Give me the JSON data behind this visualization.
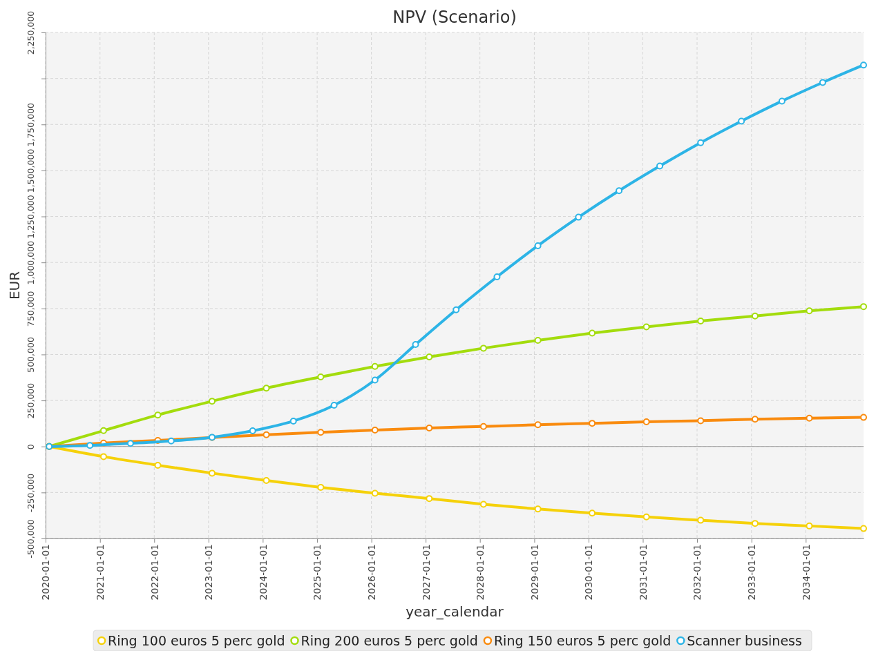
{
  "chart_data": {
    "type": "line",
    "title": "NPV (Scenario)",
    "xlabel": "year_calendar",
    "ylabel": "EUR",
    "xlim": [
      "2020-01-01",
      "2035-01-25"
    ],
    "xticks": [
      {
        "value": "2020-01-01",
        "label": "2020-01-01"
      },
      {
        "value": "2021-01-01",
        "label": "2021-01-01"
      },
      {
        "value": "2022-01-01",
        "label": "2022-01-01"
      },
      {
        "value": "2023-01-01",
        "label": "2023-01-01"
      },
      {
        "value": "2024-01-01",
        "label": "2024-01-01"
      },
      {
        "value": "2025-01-01",
        "label": "2025-01-01"
      },
      {
        "value": "2026-01-01",
        "label": "2026-01-01"
      },
      {
        "value": "2027-01-01",
        "label": "2027-01-01"
      },
      {
        "value": "2028-01-01",
        "label": "2028-01-01"
      },
      {
        "value": "2029-01-01",
        "label": "2029-01-01"
      },
      {
        "value": "2030-01-01",
        "label": "2030-01-01"
      },
      {
        "value": "2031-01-01",
        "label": "2031-01-01"
      },
      {
        "value": "2032-01-01",
        "label": "2032-01-01"
      },
      {
        "value": "2033-01-01",
        "label": "2033-01-01"
      },
      {
        "value": "2034-01-01",
        "label": "2034-01-01"
      }
    ],
    "ylim": [
      -500000,
      2250000
    ],
    "yticks": [
      {
        "value": -500000,
        "label": "-500,000"
      },
      {
        "value": -250000,
        "label": "-250,000"
      },
      {
        "value": 0,
        "label": "0"
      },
      {
        "value": 250000,
        "label": "250,000"
      },
      {
        "value": 500000,
        "label": "500,000"
      },
      {
        "value": 750000,
        "label": "750,000"
      },
      {
        "value": 1000000,
        "label": "1,000,000"
      },
      {
        "value": 1250000,
        "label": "1,250,000"
      },
      {
        "value": 1500000,
        "label": "1,500,000"
      },
      {
        "value": 1750000,
        "label": "1,750,000"
      },
      {
        "value": 2000000,
        "label": null
      },
      {
        "value": 2250000,
        "label": "2,250,000"
      }
    ],
    "grid": true,
    "legend": "bottom",
    "marker": "circle",
    "line_style": "solid",
    "series": [
      {
        "name": "Ring 100 euros 5 perc gold",
        "color": "#f5d10a",
        "x": [
          "2020-01-25",
          "2021-01-25",
          "2022-01-25",
          "2023-01-25",
          "2024-01-25",
          "2025-01-25",
          "2026-01-25",
          "2027-01-25",
          "2028-01-25",
          "2029-01-25",
          "2030-01-25",
          "2031-01-25",
          "2032-01-25",
          "2033-01-25",
          "2034-01-25",
          "2035-01-25"
        ],
        "values": [
          0,
          -55000,
          -102000,
          -145000,
          -185000,
          -222000,
          -254000,
          -283000,
          -314000,
          -340000,
          -362000,
          -383000,
          -401000,
          -418000,
          -432000,
          -446000
        ]
      },
      {
        "name": "Ring 200 euros 5 perc gold",
        "color": "#a3dc0d",
        "x": [
          "2020-01-25",
          "2021-01-25",
          "2022-01-25",
          "2023-01-25",
          "2024-01-25",
          "2025-01-25",
          "2026-01-25",
          "2027-01-25",
          "2028-01-25",
          "2029-01-25",
          "2030-01-25",
          "2031-01-25",
          "2032-01-25",
          "2033-01-25",
          "2034-01-25",
          "2035-01-25"
        ],
        "values": [
          0,
          86000,
          171000,
          246000,
          317000,
          378000,
          435000,
          487000,
          534000,
          577000,
          616000,
          650000,
          682000,
          709000,
          737000,
          760000
        ]
      },
      {
        "name": "Ring 150 euros 5 perc gold",
        "color": "#f98b0f",
        "x": [
          "2020-01-25",
          "2021-01-25",
          "2022-01-25",
          "2023-01-25",
          "2024-01-25",
          "2025-01-25",
          "2026-01-25",
          "2027-01-25",
          "2028-01-25",
          "2029-01-25",
          "2030-01-25",
          "2031-01-25",
          "2032-01-25",
          "2033-01-25",
          "2034-01-25",
          "2035-01-25"
        ],
        "values": [
          0,
          19000,
          33000,
          49000,
          64000,
          77000,
          89000,
          100000,
          109000,
          118000,
          126000,
          134000,
          140000,
          148000,
          154000,
          158000
        ]
      },
      {
        "name": "Scanner business",
        "color": "#2db4e6",
        "x": [
          "2020-01-25",
          "2020-10-25",
          "2021-07-25",
          "2022-04-25",
          "2023-01-25",
          "2023-10-25",
          "2024-07-25",
          "2025-04-25",
          "2026-01-25",
          "2026-10-25",
          "2027-07-25",
          "2028-04-25",
          "2029-01-25",
          "2029-10-25",
          "2030-07-25",
          "2031-04-25",
          "2032-01-25",
          "2032-10-25",
          "2033-07-25",
          "2034-04-25",
          "2035-01-25"
        ],
        "values": [
          0,
          6000,
          17000,
          30000,
          50000,
          85000,
          138000,
          224000,
          361000,
          554000,
          743000,
          922000,
          1091000,
          1246000,
          1390000,
          1524000,
          1651000,
          1768000,
          1877000,
          1978000,
          2073000
        ]
      }
    ]
  }
}
